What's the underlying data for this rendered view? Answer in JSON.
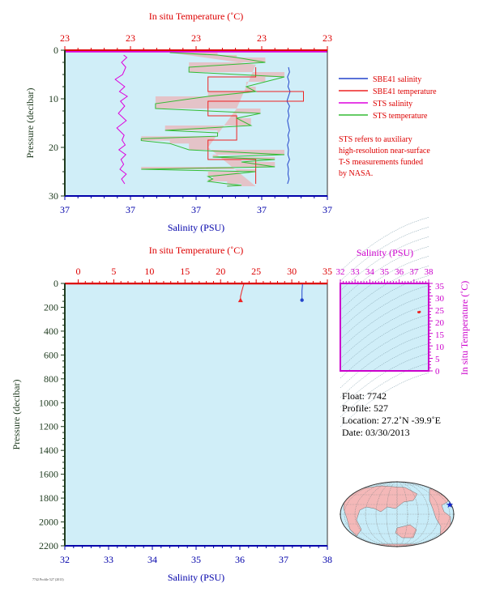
{
  "colors": {
    "plot_bg": "#d0eef8",
    "temp_axis": "#dd0000",
    "sal_axis": "#0000aa",
    "pres_axis": "#1e3a1e",
    "ts_axis": "#cc00cc",
    "sbe_salinity": "#2244cc",
    "sbe_temperature": "#ee2222",
    "sts_salinity": "#dd00dd",
    "sts_temperature": "#33bb33",
    "temp_fill": "#f4a0a0",
    "map_land": "#f4b8b8",
    "map_ocean": "#c8ecf8",
    "star": "#1122cc"
  },
  "top_panel": {
    "temp_label": "In situ Temperature (˚C)",
    "sal_label": "Salinity (PSU)",
    "pres_label": "Pressure (decibar)",
    "temp_ticks": [
      "23",
      "23",
      "23",
      "23",
      "23"
    ],
    "sal_ticks": [
      "37",
      "37",
      "37",
      "37",
      "37"
    ],
    "pres_ticks": [
      "0",
      "10",
      "20",
      "30"
    ]
  },
  "legend": {
    "items": [
      "SBE41 salinity",
      "SBE41 temperature",
      "STS salinity",
      "STS temperature"
    ],
    "note_lines": [
      "STS refers to auxiliary",
      "high-resolution near-surface",
      "T-S measurements funded",
      "by NASA."
    ]
  },
  "bottom_panel": {
    "temp_label": "In situ Temperature (˚C)",
    "sal_label": "Salinity (PSU)",
    "pres_label": "Pressure (decibar)",
    "temp_ticks": [
      "0",
      "5",
      "10",
      "15",
      "20",
      "25",
      "30",
      "35"
    ],
    "sal_ticks": [
      "32",
      "33",
      "34",
      "35",
      "36",
      "37",
      "38"
    ],
    "pres_ticks": [
      "0",
      "200",
      "400",
      "600",
      "800",
      "1000",
      "1200",
      "1400",
      "1600",
      "1800",
      "2000",
      "2200"
    ]
  },
  "ts_panel": {
    "sal_label": "Salinity (PSU)",
    "temp_label": "In situ Temperature (˚C)",
    "sal_ticks": [
      "32",
      "33",
      "34",
      "35",
      "36",
      "37",
      "38"
    ],
    "temp_ticks": [
      "0",
      "5",
      "10",
      "15",
      "20",
      "25",
      "30",
      "35"
    ]
  },
  "float_info": {
    "float": "Float:  7742",
    "profile": "Profile:  527",
    "location": "Location:  27.2˚N  -39.9˚E",
    "date": "Date:  03/30/2013"
  },
  "footer": {
    "small_text": "7742 Profile 527 (2013)"
  },
  "chart_data": [
    {
      "type": "line",
      "title": "",
      "xlabel_top": "In situ Temperature (˚C)",
      "xlabel_bottom": "Salinity (PSU)",
      "ylabel": "Pressure (decibar)",
      "temp_range": [
        22.9,
        23.45
      ],
      "sal_range": [
        37.0,
        37.05
      ],
      "ylim": [
        30,
        0
      ],
      "series": [
        {
          "name": "SBE41 salinity",
          "x": [
            37.0426,
            37.0428,
            37.0424,
            37.0427,
            37.0425,
            37.0429,
            37.0426,
            37.0423,
            37.0428,
            37.0425,
            37.0427,
            37.0424,
            37.0426,
            37.0428,
            37.0425,
            37.0427,
            37.0424,
            37.0426,
            37.0425,
            37.0428,
            37.0424,
            37.0426,
            37.0425,
            37.0427,
            37.0424
          ],
          "y": [
            3.5,
            4.5,
            5.5,
            6.5,
            7.5,
            8.5,
            9.5,
            10.5,
            11.5,
            12.5,
            13.5,
            14.5,
            15.5,
            16.5,
            17.5,
            18.5,
            19.5,
            20.5,
            21.5,
            22.5,
            23.5,
            24.5,
            25.5,
            26.5,
            27.5
          ]
        },
        {
          "name": "SBE41 temperature",
          "x": [
            23.3,
            23.3,
            23.2,
            23.2,
            23.4,
            23.4,
            23.2,
            23.2,
            23.26,
            23.26,
            23.2,
            23.2,
            23.3,
            23.3
          ],
          "y": [
            3.5,
            5.5,
            5.5,
            8.5,
            8.5,
            10.5,
            10.5,
            13.5,
            13.5,
            18.5,
            18.5,
            22.5,
            22.5,
            27.5
          ]
        },
        {
          "name": "STS salinity",
          "x": [
            37.0112,
            37.0118,
            37.0108,
            37.0116,
            37.011,
            37.0096,
            37.0114,
            37.0104,
            37.0119,
            37.0106,
            37.0114,
            37.0102,
            37.0117,
            37.0099,
            37.0113,
            37.0109,
            37.0115,
            37.0103,
            37.0116,
            37.0107,
            37.0112,
            37.0105,
            37.0117,
            37.0108,
            37.0114
          ],
          "y": [
            1,
            1.5,
            2.5,
            3.5,
            5,
            6,
            7.5,
            8.5,
            9.5,
            10.5,
            11.5,
            13,
            14.5,
            16,
            17.5,
            18.5,
            19.5,
            20.5,
            21.5,
            22.5,
            23.5,
            24.5,
            25.5,
            26.5,
            27.5
          ]
        },
        {
          "name": "STS temperature",
          "x": [
            23.12,
            23.22,
            23.26,
            23.32,
            23.16,
            23.16,
            23.36,
            23.32,
            23.28,
            23.3,
            23.2,
            23.09,
            23.09,
            23.31,
            23.26,
            23.29,
            23.11,
            23.22,
            23.22,
            23.06,
            23.06,
            23.12,
            23.16,
            23.36,
            23.21,
            23.34,
            23.27,
            23.34,
            23.06,
            23.3,
            23.2,
            23.21,
            23.2,
            23.24,
            23.27,
            23.24
          ],
          "y": [
            0.5,
            1,
            1.5,
            2.5,
            3.5,
            4.5,
            5.5,
            6.5,
            7.5,
            8.5,
            9.5,
            11,
            12,
            13,
            14,
            15.5,
            16.5,
            17,
            17.7,
            18.2,
            18.6,
            19.2,
            20.5,
            21.5,
            22,
            22.5,
            23,
            24,
            24.5,
            25,
            26,
            26.5,
            27,
            27.5,
            27.8,
            28
          ]
        }
      ]
    },
    {
      "type": "line",
      "title": "",
      "xlabel_top": "In situ Temperature (˚C)",
      "xlabel_bottom": "Salinity (PSU)",
      "ylabel": "Pressure (decibar)",
      "temp_range": [
        -2,
        35
      ],
      "sal_range": [
        32,
        38
      ],
      "ylim": [
        2200,
        0
      ],
      "series": [
        {
          "name": "SBE41 temperature",
          "x": [
            23.3,
            23.2,
            23.0,
            22.8,
            22.8
          ],
          "y": [
            0,
            20,
            60,
            110,
            140
          ]
        },
        {
          "name": "SBE41 salinity",
          "x": [
            37.43,
            37.43,
            37.42,
            37.42,
            37.42
          ],
          "y": [
            0,
            20,
            60,
            110,
            140
          ]
        }
      ]
    },
    {
      "type": "scatter",
      "title": "",
      "xlabel": "Salinity (PSU)",
      "ylabel": "In situ Temperature (˚C)",
      "xlim": [
        32,
        38
      ],
      "ylim": [
        -1,
        35
      ],
      "points": [
        {
          "x": 37.3,
          "y": 23.2
        },
        {
          "x": 37.4,
          "y": 23.3
        },
        {
          "x": 37.35,
          "y": 23.1
        }
      ]
    }
  ]
}
